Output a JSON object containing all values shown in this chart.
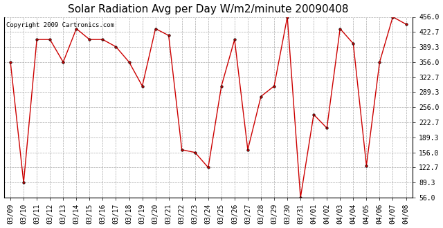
{
  "title": "Solar Radiation Avg per Day W/m2/minute 20090408",
  "copyright": "Copyright 2009 Cartronics.com",
  "labels": [
    "03/09",
    "03/10",
    "03/11",
    "03/12",
    "03/13",
    "03/14",
    "03/15",
    "03/16",
    "03/17",
    "03/18",
    "03/19",
    "03/20",
    "03/21",
    "03/22",
    "03/23",
    "03/24",
    "03/25",
    "03/26",
    "03/27",
    "03/28",
    "03/29",
    "03/30",
    "03/31",
    "04/01",
    "04/02",
    "04/03",
    "04/04",
    "04/05",
    "04/06",
    "04/07",
    "04/08"
  ],
  "values": [
    356.0,
    89.3,
    406.0,
    406.0,
    356.0,
    430.0,
    406.0,
    406.0,
    390.0,
    356.0,
    303.0,
    430.0,
    415.0,
    162.0,
    156.0,
    122.7,
    303.0,
    406.0,
    162.0,
    280.0,
    303.0,
    456.0,
    56.0,
    240.0,
    210.0,
    430.0,
    397.0,
    127.0,
    356.0,
    456.0,
    440.0
  ],
  "line_color": "#cc0000",
  "marker_color": "#cc0000",
  "bg_color": "#ffffff",
  "grid_color": "#aaaaaa",
  "ylim": [
    56.0,
    456.0
  ],
  "yticks": [
    56.0,
    89.3,
    122.7,
    156.0,
    189.3,
    222.7,
    256.0,
    289.3,
    322.7,
    356.0,
    389.3,
    422.7,
    456.0
  ],
  "title_fontsize": 11,
  "copyright_fontsize": 6.5,
  "tick_fontsize": 7
}
